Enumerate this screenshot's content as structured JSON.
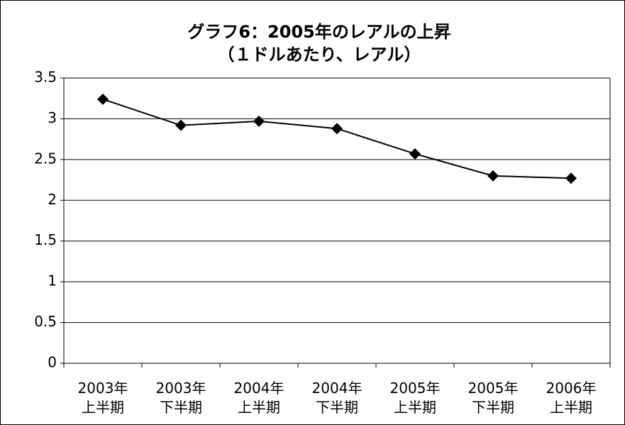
{
  "chart_data": {
    "type": "line",
    "title": "グラフ6：2005年のレアルの上昇\n（１ドルあたり、レアル）",
    "categories": [
      "2003年\n上半期",
      "2003年\n下半期",
      "2004年\n上半期",
      "2004年\n下半期",
      "2005年\n上半期",
      "2005年\n下半期",
      "2006年\n上半期"
    ],
    "values": [
      3.24,
      2.92,
      2.97,
      2.88,
      2.57,
      2.3,
      2.27
    ],
    "color": "#000000",
    "marker": "diamond",
    "ylim": [
      0,
      3.5
    ],
    "yticks": [
      0,
      0.5,
      1,
      1.5,
      2,
      2.5,
      3,
      3.5
    ],
    "grid": true
  }
}
